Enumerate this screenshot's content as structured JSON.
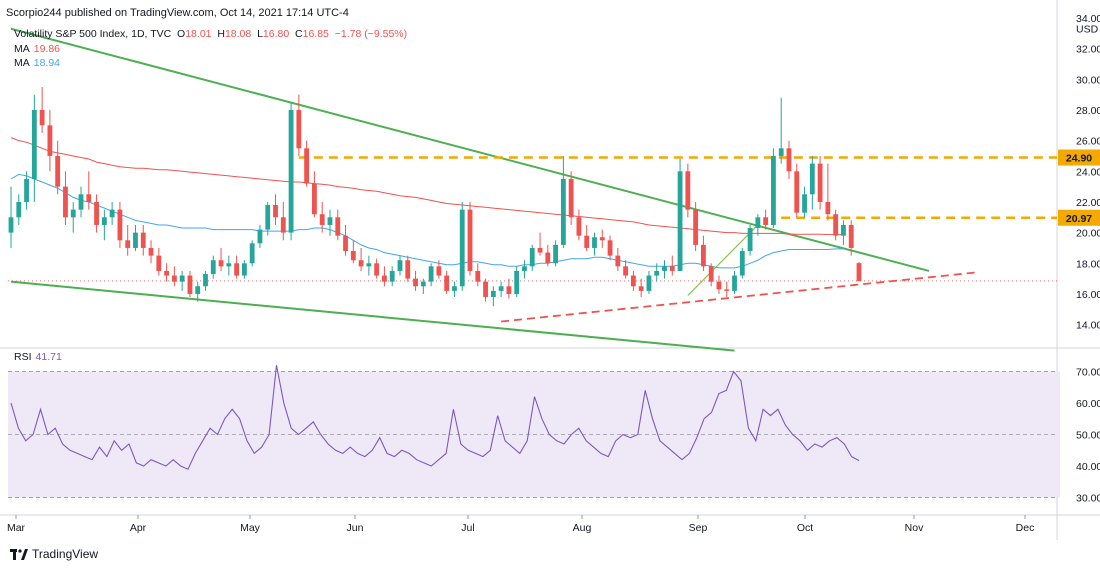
{
  "header": {
    "publisher": "Scorpio244 published on TradingView.com, Oct 14, 2021 17:14 UTC-4"
  },
  "legend": {
    "symbol": "Volatility S&P 500 Index, 1D, TVC",
    "ohlc": [
      {
        "k": "O",
        "v": "18.01"
      },
      {
        "k": "H",
        "v": "18.08"
      },
      {
        "k": "L",
        "v": "16.80"
      },
      {
        "k": "C",
        "v": "16.85"
      }
    ],
    "change": "−1.78 (−9.55%)",
    "ma1_label": "MA",
    "ma1_value": "19.86",
    "ma1_color": "#ef5350",
    "ma2_label": "MA",
    "ma2_value": "18.94",
    "ma2_color": "#42a5f5",
    "rsi_label": "RSI",
    "rsi_value": "41.71",
    "rsi_color": "#7e57c2"
  },
  "footer": {
    "brand": "TradingView"
  },
  "colors": {
    "up": "#26a69a",
    "down": "#ef5350",
    "trend": "#4caf50",
    "level": "#f2a900"
  },
  "chart_data": [
    {
      "type": "candlestick",
      "x_months": [
        "Mar",
        "Apr",
        "May",
        "Jun",
        "Jul",
        "Aug",
        "Sep",
        "Oct",
        "Nov",
        "Dec"
      ],
      "y_ticks": [
        "34.00",
        "32.00",
        "30.00",
        "28.00",
        "26.00",
        "24.00",
        "22.00",
        "20.00",
        "18.00",
        "16.00",
        "14.00"
      ],
      "y_unit": "USD",
      "ylim": [
        12.8,
        34
      ],
      "last_price": "16.85",
      "levels": [
        {
          "value": 24.9,
          "label": "24.90"
        },
        {
          "value": 20.97,
          "label": "20.97"
        }
      ],
      "candles": [
        [
          20,
          23,
          19,
          21
        ],
        [
          21,
          22.5,
          20.5,
          22
        ],
        [
          22,
          24,
          21.5,
          23.5
        ],
        [
          23.5,
          29,
          22,
          28
        ],
        [
          28,
          29.5,
          26.5,
          27
        ],
        [
          27,
          28,
          24,
          25
        ],
        [
          25,
          26,
          22.5,
          23
        ],
        [
          23,
          24,
          20.5,
          21
        ],
        [
          21,
          22,
          20,
          21.5
        ],
        [
          21.5,
          23,
          21,
          22.5
        ],
        [
          22.5,
          24,
          21.5,
          22
        ],
        [
          22,
          22.5,
          20,
          20.5
        ],
        [
          20.5,
          21.5,
          19.5,
          21
        ],
        [
          21,
          22,
          20.5,
          21.5
        ],
        [
          21.5,
          22,
          19,
          19.5
        ],
        [
          19.5,
          20.5,
          18.5,
          19
        ],
        [
          19,
          20.5,
          18.8,
          20
        ],
        [
          20,
          20.5,
          18.5,
          19
        ],
        [
          19,
          19.5,
          18,
          18.5
        ],
        [
          18.5,
          19,
          17.2,
          17.5
        ],
        [
          17.5,
          18,
          16.8,
          17.2
        ],
        [
          17.2,
          17.8,
          16.5,
          16.8
        ],
        [
          16.8,
          17.5,
          16.2,
          17.2
        ],
        [
          17.2,
          17.5,
          15.8,
          16
        ],
        [
          16,
          16.8,
          15.5,
          16.5
        ],
        [
          16.5,
          17.5,
          16.2,
          17.3
        ],
        [
          17.3,
          18.5,
          17,
          18.2
        ],
        [
          18.2,
          19,
          17.5,
          17.8
        ],
        [
          17.8,
          18.5,
          17.2,
          18
        ],
        [
          18,
          18.5,
          17,
          17.2
        ],
        [
          17.2,
          18.2,
          17,
          18
        ],
        [
          18,
          19.5,
          17.8,
          19.3
        ],
        [
          19.3,
          20.5,
          19,
          20.2
        ],
        [
          20.2,
          22,
          19.8,
          21.8
        ],
        [
          21.8,
          22.5,
          20.5,
          21
        ],
        [
          21,
          22,
          19.5,
          20
        ],
        [
          20,
          28.5,
          19.5,
          28
        ],
        [
          28,
          29,
          25,
          25.5
        ],
        [
          25.5,
          26,
          23,
          23.2
        ],
        [
          23.2,
          24,
          21,
          21.2
        ],
        [
          21.2,
          22,
          20,
          20.5
        ],
        [
          20.5,
          21.5,
          19.8,
          21
        ],
        [
          21,
          21.5,
          19.5,
          19.8
        ],
        [
          19.8,
          20.5,
          18.5,
          18.8
        ],
        [
          18.8,
          19.5,
          18,
          18.2
        ],
        [
          18.2,
          19,
          17.5,
          17.8
        ],
        [
          17.8,
          18.5,
          17.2,
          18
        ],
        [
          18,
          18.3,
          17,
          17.2
        ],
        [
          17.2,
          17.8,
          16.5,
          16.8
        ],
        [
          16.8,
          17.8,
          16.5,
          17.5
        ],
        [
          17.5,
          18.5,
          17.2,
          18.2
        ],
        [
          18.2,
          18.5,
          16.8,
          17
        ],
        [
          17,
          17.5,
          16.2,
          16.5
        ],
        [
          16.5,
          17,
          16,
          16.8
        ],
        [
          16.8,
          18,
          16.5,
          17.8
        ],
        [
          17.8,
          18.2,
          17,
          17.2
        ],
        [
          17.2,
          17.5,
          16,
          16.2
        ],
        [
          16.2,
          16.8,
          15.8,
          16.5
        ],
        [
          16.5,
          22,
          16.2,
          21.5
        ],
        [
          21.5,
          22,
          17.2,
          17.5
        ],
        [
          17.5,
          18,
          16.5,
          16.8
        ],
        [
          16.8,
          17,
          15.5,
          15.8
        ],
        [
          15.8,
          16.5,
          15.2,
          16.2
        ],
        [
          16.2,
          16.8,
          15.8,
          16.5
        ],
        [
          16.5,
          17,
          15.7,
          16
        ],
        [
          16,
          17.8,
          15.8,
          17.5
        ],
        [
          17.5,
          18.2,
          17,
          17.8
        ],
        [
          17.8,
          19.2,
          17.5,
          19
        ],
        [
          19,
          20,
          18.5,
          18.7
        ],
        [
          18.7,
          19.2,
          17.8,
          18
        ],
        [
          18,
          19.5,
          17.8,
          19.2
        ],
        [
          19.2,
          25,
          19,
          23.5
        ],
        [
          23.5,
          24,
          20.5,
          21
        ],
        [
          21,
          21.5,
          19.5,
          19.8
        ],
        [
          19.8,
          20.5,
          18.8,
          19
        ],
        [
          19,
          20,
          18.5,
          19.7
        ],
        [
          19.7,
          20.2,
          19,
          19.5
        ],
        [
          19.5,
          19.8,
          18.2,
          18.5
        ],
        [
          18.5,
          19,
          17.5,
          17.8
        ],
        [
          17.8,
          18.2,
          17,
          17.2
        ],
        [
          17.2,
          17.5,
          16.2,
          16.5
        ],
        [
          16.5,
          17,
          15.8,
          16.2
        ],
        [
          16.2,
          17.5,
          16,
          17.2
        ],
        [
          17.2,
          18,
          16.8,
          17.5
        ],
        [
          17.5,
          18.2,
          17,
          17.8
        ],
        [
          17.8,
          18.5,
          17.2,
          17.5
        ],
        [
          17.5,
          24.8,
          17.5,
          24
        ],
        [
          24,
          24.5,
          21,
          21.5
        ],
        [
          21.5,
          22,
          18.8,
          19.2
        ],
        [
          19.2,
          19.8,
          17.5,
          17.8
        ],
        [
          17.8,
          18,
          16.5,
          16.8
        ],
        [
          16.8,
          17.2,
          16,
          16.3
        ],
        [
          16.3,
          16.8,
          15.8,
          16.2
        ],
        [
          16.2,
          17.5,
          16,
          17.2
        ],
        [
          17.2,
          19,
          17,
          18.8
        ],
        [
          18.8,
          20.5,
          18.5,
          20.3
        ],
        [
          20.3,
          21.2,
          19.8,
          21
        ],
        [
          21,
          21.5,
          20.2,
          20.5
        ],
        [
          20.5,
          25.5,
          20.3,
          25
        ],
        [
          25,
          28.8,
          24.5,
          25.5
        ],
        [
          25.5,
          26,
          23.5,
          24
        ],
        [
          24,
          24.5,
          21,
          21.3
        ],
        [
          21.3,
          23,
          21,
          22.5
        ],
        [
          22.5,
          25,
          21.5,
          24.5
        ],
        [
          24.5,
          25,
          21.5,
          22
        ],
        [
          22,
          24.5,
          20.8,
          21.2
        ],
        [
          21.2,
          21.5,
          19.5,
          19.8
        ],
        [
          19.8,
          20.8,
          19.2,
          20.5
        ],
        [
          20.5,
          20.8,
          18.5,
          19
        ],
        [
          18.01,
          18.08,
          16.8,
          16.85
        ]
      ],
      "ma_red": [
        26.2,
        26,
        25.9,
        25.7,
        25.5,
        25.3,
        25.2,
        25.1,
        25,
        24.9,
        24.8,
        24.6,
        24.5,
        24.4,
        24.3,
        24.25,
        24.2,
        24.2,
        24.15,
        24.1,
        24.1,
        24.05,
        24,
        23.95,
        23.9,
        23.85,
        23.8,
        23.75,
        23.7,
        23.65,
        23.6,
        23.55,
        23.5,
        23.45,
        23.4,
        23.35,
        23.3,
        23.3,
        23.25,
        23.2,
        23.15,
        23.1,
        23,
        22.95,
        22.9,
        22.8,
        22.75,
        22.7,
        22.6,
        22.5,
        22.4,
        22.35,
        22.3,
        22.2,
        22.1,
        22,
        21.9,
        21.85,
        21.8,
        21.75,
        21.7,
        21.65,
        21.6,
        21.55,
        21.5,
        21.45,
        21.4,
        21.35,
        21.3,
        21.25,
        21.2,
        21.15,
        21.1,
        21.05,
        21,
        20.95,
        20.9,
        20.85,
        20.8,
        20.75,
        20.7,
        20.6,
        20.5,
        20.45,
        20.4,
        20.35,
        20.3,
        20.25,
        20.2,
        20.15,
        20.1,
        20.05,
        20,
        20,
        19.95,
        19.95,
        19.95,
        19.95,
        19.95,
        19.95,
        19.9,
        19.9,
        19.9,
        19.9,
        19.9,
        19.88,
        19.87,
        19.86
      ],
      "ma_blue": [
        23.5,
        23.8,
        23.7,
        23.5,
        23.3,
        23.1,
        22.9,
        22.6,
        22.3,
        22.1,
        22,
        21.8,
        21.6,
        21.4,
        21.2,
        21,
        20.8,
        20.7,
        20.6,
        20.5,
        20.5,
        20.4,
        20.3,
        20.3,
        20.3,
        20.3,
        20.2,
        20.2,
        20.2,
        20.2,
        20.2,
        20.2,
        20.1,
        20.1,
        20.1,
        20.1,
        20.1,
        20.2,
        20.2,
        20.3,
        20.3,
        20.2,
        20,
        19.8,
        19.5,
        19.2,
        19,
        18.9,
        18.7,
        18.6,
        18.5,
        18.4,
        18.3,
        18.2,
        18.1,
        18,
        17.9,
        17.9,
        18,
        18.1,
        18.1,
        18,
        17.9,
        17.9,
        17.8,
        17.8,
        17.9,
        17.9,
        18,
        18,
        18.1,
        18.2,
        18.3,
        18.3,
        18.3,
        18.4,
        18.4,
        18.3,
        18.2,
        18.1,
        18,
        17.9,
        17.8,
        17.8,
        17.8,
        17.8,
        17.9,
        18,
        18,
        17.9,
        17.8,
        17.7,
        17.7,
        17.7,
        17.8,
        18,
        18.2,
        18.5,
        18.7,
        18.8,
        18.9,
        18.9,
        18.9,
        18.9,
        18.9,
        18.9,
        18.94,
        18.94
      ],
      "trend_upper": [
        [
          0,
          33.3
        ],
        [
          118,
          17.5
        ]
      ],
      "trend_lower": [
        [
          0,
          16.8
        ],
        [
          93,
          12.3
        ]
      ],
      "support_dashed": [
        [
          63,
          14.2
        ],
        [
          124,
          17.4
        ]
      ]
    },
    {
      "type": "line",
      "name": "RSI",
      "y_ticks": [
        "70.00",
        "60.00",
        "50.00",
        "40.00",
        "30.00"
      ],
      "ylim": [
        27,
        73
      ],
      "bands": [
        30,
        50,
        70
      ],
      "values": [
        60,
        52,
        48,
        50,
        58,
        50,
        52,
        47,
        45,
        44,
        43,
        42,
        46,
        43,
        48,
        45,
        47,
        41,
        40,
        42,
        41,
        40,
        42,
        40,
        39,
        44,
        48,
        52,
        50,
        55,
        58,
        55,
        48,
        44,
        46,
        50,
        72,
        60,
        52,
        50,
        52,
        54,
        50,
        47,
        45,
        44,
        46,
        44,
        43,
        45,
        49,
        44,
        43,
        45,
        44,
        42,
        41,
        40,
        42,
        44,
        58,
        47,
        45,
        44,
        43,
        45,
        56,
        48,
        46,
        44,
        48,
        62,
        55,
        50,
        48,
        47,
        50,
        52,
        48,
        46,
        44,
        43,
        48,
        50,
        49,
        50,
        64,
        55,
        48,
        46,
        44,
        42,
        44,
        49,
        55,
        57,
        63,
        64,
        70,
        67,
        52,
        48,
        58,
        56,
        58,
        53,
        50,
        48,
        45,
        47,
        46,
        48,
        49,
        47,
        43,
        41.71
      ]
    }
  ]
}
